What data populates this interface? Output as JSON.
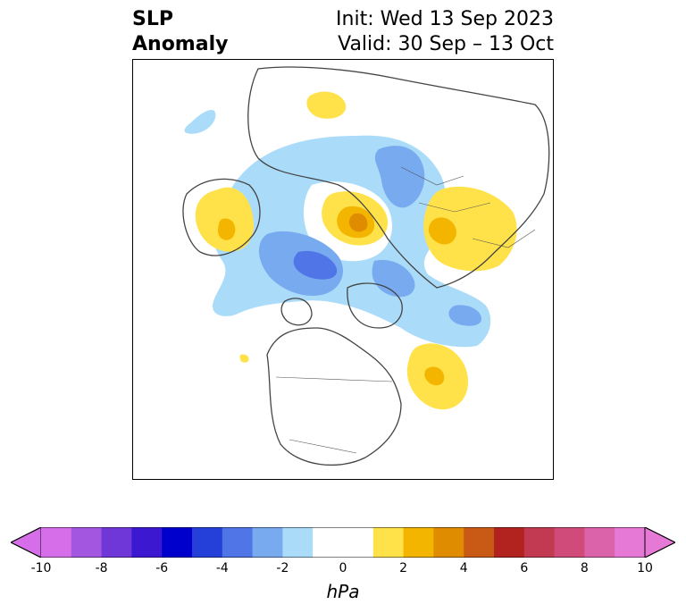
{
  "title": {
    "left_line1": "SLP",
    "left_line2": "Anomaly",
    "right_line1": "Init: Wed 13 Sep 2023",
    "right_line2": "Valid: 30 Sep – 13 Oct"
  },
  "colorbar": {
    "unit": "hPa",
    "ticks": [
      "-10",
      "-8",
      "-6",
      "-4",
      "-2",
      "0",
      "2",
      "4",
      "6",
      "8",
      "10"
    ],
    "min": -10,
    "max": 10,
    "extend": "both",
    "colors": [
      "#d56ee8",
      "#a356e0",
      "#6f36d8",
      "#3c18d0",
      "#0000cc",
      "#2440d8",
      "#4f75e6",
      "#78aaf0",
      "#aadcfa",
      "#ffffff",
      "#ffffff",
      "#ffe24a",
      "#f3b500",
      "#e08c00",
      "#c95a16",
      "#b2221e",
      "#c23a52",
      "#d04b7a",
      "#db63aa",
      "#e779d6"
    ]
  },
  "map": {
    "region": "Northern Hemisphere polar stereographic",
    "features": [
      "negative anomaly over Arctic Ocean",
      "positive anomaly over Siberia",
      "positive anomaly over Alaska",
      "positive anomaly over North Atlantic",
      "positive anomaly over Scandinavia"
    ]
  }
}
